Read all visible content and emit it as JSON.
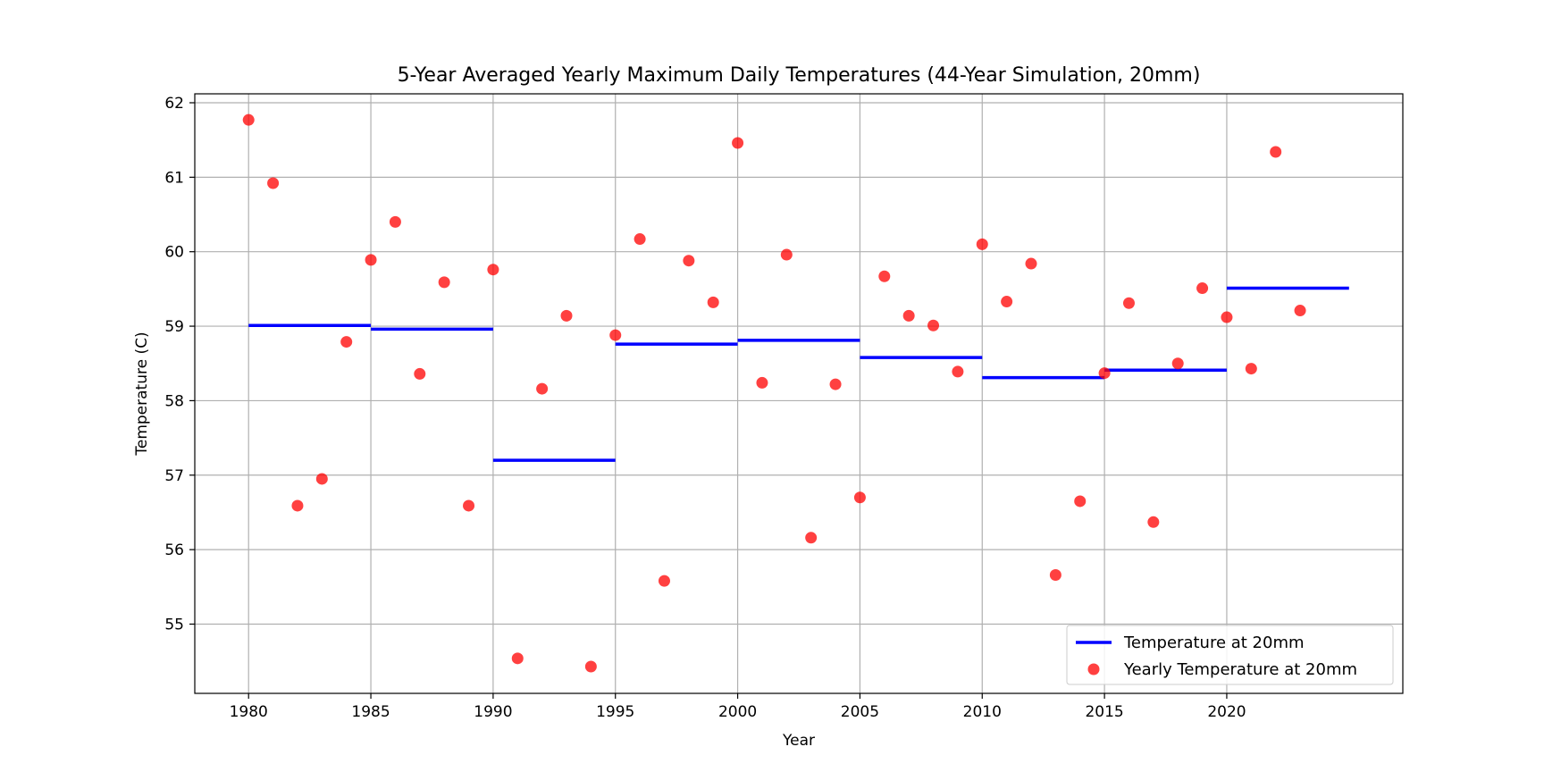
{
  "chart_data": {
    "type": "scatter",
    "title": "5-Year Averaged Yearly Maximum Daily Temperatures (44-Year Simulation, 20mm)",
    "xlabel": "Year",
    "ylabel": "Temperature (C)",
    "xlim": [
      1977.8,
      2027.2
    ],
    "ylim": [
      54.07,
      62.12
    ],
    "xticks": [
      1980,
      1985,
      1990,
      1995,
      2000,
      2005,
      2010,
      2015,
      2020
    ],
    "yticks": [
      55,
      56,
      57,
      58,
      59,
      60,
      61,
      62
    ],
    "grid": true,
    "legend_position": "lower-right",
    "colors": {
      "averaged": "#0000ff",
      "yearly": "#ff0000"
    },
    "series": [
      {
        "name": "Temperature at 20mm",
        "kind": "step",
        "segments": [
          {
            "x_start": 1980,
            "x_end": 1985,
            "y": 59.01
          },
          {
            "x_start": 1985,
            "x_end": 1990,
            "y": 58.96
          },
          {
            "x_start": 1990,
            "x_end": 1995,
            "y": 57.2
          },
          {
            "x_start": 1995,
            "x_end": 2000,
            "y": 58.76
          },
          {
            "x_start": 2000,
            "x_end": 2005,
            "y": 58.81
          },
          {
            "x_start": 2005,
            "x_end": 2010,
            "y": 58.58
          },
          {
            "x_start": 2010,
            "x_end": 2015,
            "y": 58.31
          },
          {
            "x_start": 2015,
            "x_end": 2020,
            "y": 58.41
          },
          {
            "x_start": 2020,
            "x_end": 2025,
            "y": 59.51
          }
        ]
      },
      {
        "name": "Yearly Temperature at 20mm",
        "kind": "scatter",
        "points": [
          {
            "x": 1980,
            "y": 61.77
          },
          {
            "x": 1981,
            "y": 60.92
          },
          {
            "x": 1982,
            "y": 56.59
          },
          {
            "x": 1983,
            "y": 56.95
          },
          {
            "x": 1984,
            "y": 58.79
          },
          {
            "x": 1985,
            "y": 59.89
          },
          {
            "x": 1986,
            "y": 60.4
          },
          {
            "x": 1987,
            "y": 58.36
          },
          {
            "x": 1988,
            "y": 59.59
          },
          {
            "x": 1989,
            "y": 56.59
          },
          {
            "x": 1990,
            "y": 59.76
          },
          {
            "x": 1991,
            "y": 54.54
          },
          {
            "x": 1992,
            "y": 58.16
          },
          {
            "x": 1993,
            "y": 59.14
          },
          {
            "x": 1994,
            "y": 54.43
          },
          {
            "x": 1995,
            "y": 58.88
          },
          {
            "x": 1996,
            "y": 60.17
          },
          {
            "x": 1997,
            "y": 55.58
          },
          {
            "x": 1998,
            "y": 59.88
          },
          {
            "x": 1999,
            "y": 59.32
          },
          {
            "x": 2000,
            "y": 61.46
          },
          {
            "x": 2001,
            "y": 58.24
          },
          {
            "x": 2002,
            "y": 59.96
          },
          {
            "x": 2003,
            "y": 56.16
          },
          {
            "x": 2004,
            "y": 58.22
          },
          {
            "x": 2005,
            "y": 56.7
          },
          {
            "x": 2006,
            "y": 59.67
          },
          {
            "x": 2007,
            "y": 59.14
          },
          {
            "x": 2008,
            "y": 59.01
          },
          {
            "x": 2009,
            "y": 58.39
          },
          {
            "x": 2010,
            "y": 60.1
          },
          {
            "x": 2011,
            "y": 59.33
          },
          {
            "x": 2012,
            "y": 59.84
          },
          {
            "x": 2013,
            "y": 55.66
          },
          {
            "x": 2014,
            "y": 56.65
          },
          {
            "x": 2015,
            "y": 58.37
          },
          {
            "x": 2016,
            "y": 59.31
          },
          {
            "x": 2017,
            "y": 56.37
          },
          {
            "x": 2018,
            "y": 58.5
          },
          {
            "x": 2019,
            "y": 59.51
          },
          {
            "x": 2020,
            "y": 59.12
          },
          {
            "x": 2021,
            "y": 58.43
          },
          {
            "x": 2022,
            "y": 61.34
          },
          {
            "x": 2023,
            "y": 59.21
          }
        ]
      }
    ]
  }
}
